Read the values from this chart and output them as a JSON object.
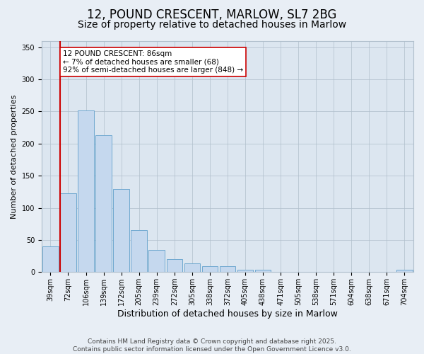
{
  "title": "12, POUND CRESCENT, MARLOW, SL7 2BG",
  "subtitle": "Size of property relative to detached houses in Marlow",
  "xlabel": "Distribution of detached houses by size in Marlow",
  "ylabel": "Number of detached properties",
  "categories": [
    "39sqm",
    "72sqm",
    "106sqm",
    "139sqm",
    "172sqm",
    "205sqm",
    "239sqm",
    "272sqm",
    "305sqm",
    "338sqm",
    "372sqm",
    "405sqm",
    "438sqm",
    "471sqm",
    "505sqm",
    "538sqm",
    "571sqm",
    "604sqm",
    "638sqm",
    "671sqm",
    "704sqm"
  ],
  "bar_heights": [
    40,
    123,
    252,
    213,
    129,
    65,
    35,
    20,
    14,
    9,
    9,
    4,
    4,
    0,
    0,
    0,
    0,
    0,
    0,
    0,
    4
  ],
  "bar_color": "#c5d8ee",
  "bar_edge_color": "#6fa8d0",
  "vline_color": "#cc0000",
  "vline_x_index": 1.5,
  "annotation_text": "12 POUND CRESCENT: 86sqm\n← 7% of detached houses are smaller (68)\n92% of semi-detached houses are larger (848) →",
  "annotation_box_color": "#ffffff",
  "annotation_box_edge": "#cc0000",
  "background_color": "#e8eef5",
  "plot_bg_color": "#dce6f0",
  "footer": "Contains HM Land Registry data © Crown copyright and database right 2025.\nContains public sector information licensed under the Open Government Licence v3.0.",
  "ylim": [
    0,
    360
  ],
  "yticks": [
    0,
    50,
    100,
    150,
    200,
    250,
    300,
    350
  ],
  "title_fontsize": 12,
  "subtitle_fontsize": 10,
  "xlabel_fontsize": 9,
  "ylabel_fontsize": 8,
  "tick_fontsize": 7,
  "footer_fontsize": 6.5,
  "annot_fontsize": 7.5
}
